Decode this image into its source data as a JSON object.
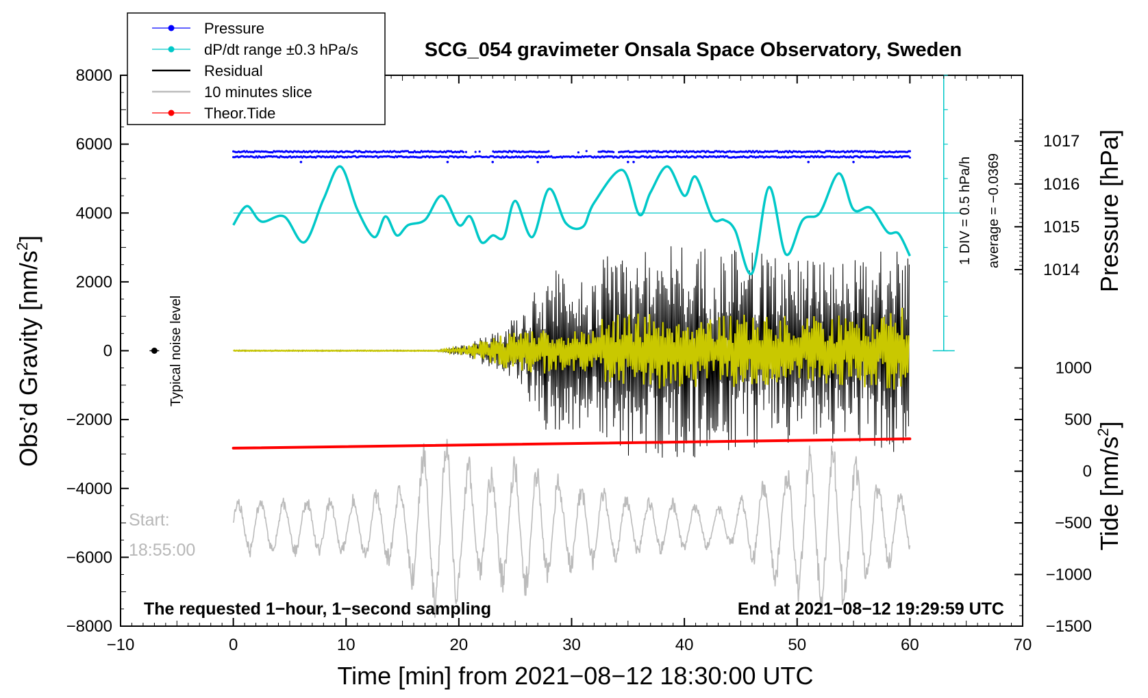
{
  "chart_data": {
    "type": "line",
    "title": "SCG_054 gravimeter Onsala Space Observatory, Sweden",
    "xlabel": "Time [min] from 2021−08−12 18:30:00 UTC",
    "ylabel_left_prefix": "Obs’d Gravity [nm/s",
    "ylabel_left_sup": "2",
    "ylabel_left_suffix": "]",
    "ylabel_right_pressure": "Pressure [hPa]",
    "ylabel_right_tide_prefix": "Tide [nm/s",
    "ylabel_right_tide_sup": "2",
    "ylabel_right_tide_suffix": "]",
    "xlim": [
      -10,
      70
    ],
    "ylim": [
      -8000,
      8000
    ],
    "x_ticks": [
      "−10",
      "0",
      "10",
      "20",
      "30",
      "40",
      "50",
      "60",
      "70"
    ],
    "x_tick_values": [
      -10,
      0,
      10,
      20,
      30,
      40,
      50,
      60,
      70
    ],
    "y_ticks": [
      "8000",
      "6000",
      "4000",
      "2000",
      "0",
      "−2000",
      "−4000",
      "−6000",
      "−8000"
    ],
    "y_tick_values": [
      8000,
      6000,
      4000,
      2000,
      0,
      -2000,
      -4000,
      -6000,
      -8000
    ],
    "pressure_ticks": [
      "1017",
      "1016",
      "1015",
      "1014"
    ],
    "pressure_tick_values": [
      1017,
      1016,
      1015,
      1014
    ],
    "pressure_axis": {
      "value_at_gravity_6000": 1016.93,
      "hpa_per_1000_nms2": 0.804
    },
    "tide_ticks": [
      "1000",
      "500",
      "0",
      "−500",
      "−1000",
      "−1500"
    ],
    "tide_tick_values": [
      1000,
      500,
      0,
      -500,
      -1000,
      -1500
    ],
    "tide_axis": {
      "value_at_gravity_minus_8000": -1500,
      "nms2_per_1000_nms2": 333.3
    },
    "legend": [
      {
        "label": "Pressure",
        "color": "#0000ff",
        "marker": "dot"
      },
      {
        "label": "dP/dt range ±0.3 hPa/s",
        "color": "#00c8c8",
        "marker": "dot"
      },
      {
        "label": "Residual",
        "color": "#000000",
        "marker": "line"
      },
      {
        "label": "10 minutes slice",
        "color": "#bbbbbb",
        "marker": "line"
      },
      {
        "label": "Theor.Tide",
        "color": "#ff0000",
        "marker": "dot"
      }
    ],
    "annotations": {
      "noise_level": "Typical noise level",
      "start_label": "Start:",
      "start_time": "18:55:00",
      "bottom_left": "The requested 1−hour, 1−second sampling",
      "bottom_right": "End at 2021−08−12 19:29:59 UTC",
      "div_label": "1 DIV = 0.5 hPa/h",
      "average_label": "average = −0.0369"
    },
    "noise_level_point": {
      "x": -7,
      "y": 0
    },
    "series": [
      {
        "name": "Pressure",
        "color": "#0000ff",
        "bands": [
          {
            "y": 5780,
            "gaps": [
              [
                20.5,
                23.0
              ],
              [
                28.0,
                32.5
              ],
              [
                33.8,
                34.3
              ]
            ]
          },
          {
            "y": 5630,
            "gaps": []
          }
        ],
        "low_row": {
          "y": 5480,
          "x": [
            6,
            19,
            23,
            27,
            35,
            35.5,
            51,
            55
          ]
        }
      },
      {
        "name": "dP/dt range ±0.3 hPa/s",
        "color": "#00c8c8",
        "x": [
          0,
          1.2,
          2.5,
          4.5,
          6.3,
          8,
          9.5,
          11,
          12.5,
          13.5,
          14.5,
          15.5,
          17,
          18.5,
          20,
          21,
          22,
          23,
          24,
          25,
          26.5,
          28,
          29.5,
          31,
          32,
          34.5,
          36,
          37,
          38.5,
          40,
          41,
          42.5,
          43.5,
          44.5,
          46,
          47.5,
          49,
          50.5,
          52,
          53.7,
          55,
          56.5,
          58,
          59,
          60
        ],
        "values": [
          3650,
          4200,
          3750,
          3900,
          3150,
          4400,
          5350,
          4100,
          3300,
          3900,
          3350,
          3650,
          3800,
          4500,
          3650,
          3900,
          3150,
          3350,
          3300,
          4350,
          3300,
          4700,
          3700,
          3600,
          4300,
          5250,
          3950,
          4600,
          5350,
          4500,
          5050,
          3850,
          3800,
          3500,
          2250,
          4750,
          2800,
          3800,
          4000,
          5150,
          4100,
          4150,
          3450,
          3400,
          2750
        ]
      },
      {
        "name": "Residual",
        "color": "#000000",
        "amplitude_envelope": {
          "x": [
            0,
            18,
            20,
            23,
            26,
            27,
            29,
            32,
            33,
            36,
            40,
            45,
            50,
            55,
            60
          ],
          "amplitude": [
            20,
            20,
            150,
            500,
            1200,
            2200,
            2600,
            2000,
            2800,
            3200,
            3200,
            2900,
            2700,
            2800,
            3000
          ]
        }
      },
      {
        "name": "filtered residual",
        "color": "#c9c800",
        "amplitude_envelope": {
          "x": [
            0,
            18,
            20,
            23,
            26,
            32,
            33,
            40,
            50,
            58,
            60
          ],
          "amplitude": [
            10,
            10,
            100,
            400,
            700,
            600,
            1100,
            1100,
            1000,
            1100,
            1600
          ]
        }
      },
      {
        "name": "Theor.Tide",
        "color": "#ff0000",
        "x": [
          0,
          60
        ],
        "values": [
          -2830,
          -2560
        ]
      },
      {
        "name": "10 minutes slice",
        "color": "#bbbbbb",
        "x": [
          0,
          60
        ],
        "baseline": -5100,
        "amplitude_envelope": {
          "x": [
            0,
            5,
            10,
            15,
            17,
            19,
            22,
            25,
            28,
            31,
            33,
            36,
            40,
            44,
            47,
            50,
            53,
            56,
            60
          ],
          "amplitude": [
            900,
            900,
            900,
            1300,
            2600,
            2900,
            1600,
            2300,
            1700,
            1300,
            1200,
            900,
            800,
            600,
            1500,
            2200,
            2800,
            1800,
            900
          ]
        }
      }
    ]
  }
}
